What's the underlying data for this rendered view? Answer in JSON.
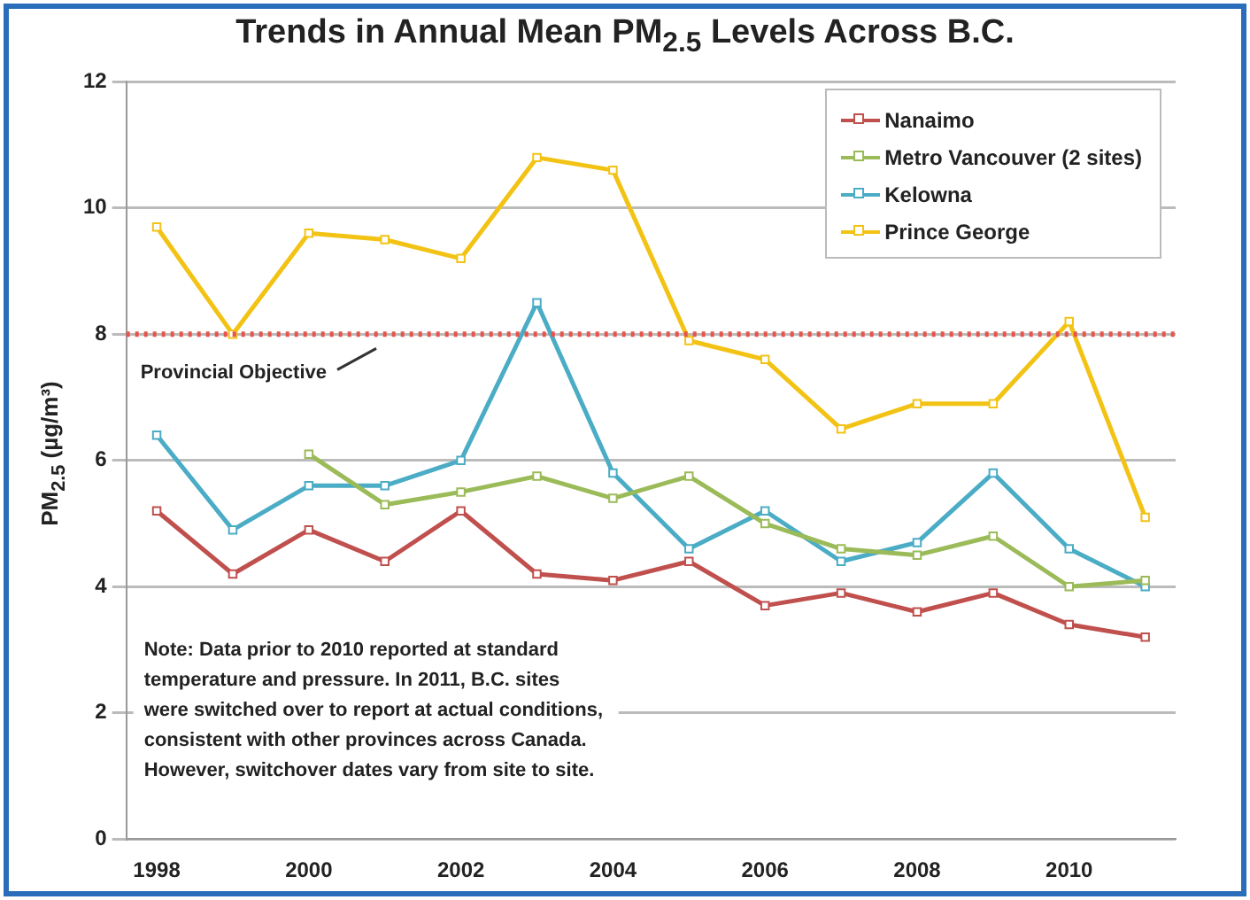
{
  "chart_data": {
    "type": "line",
    "title": "Trends in Annual Mean PM$_{2.5}$ Levels Across B.C.",
    "ylabel": "PM$_{2.5}$ (µg/m³)",
    "x": [
      1998,
      1999,
      2000,
      2001,
      2002,
      2003,
      2004,
      2005,
      2006,
      2007,
      2008,
      2009,
      2010,
      2011
    ],
    "series": [
      {
        "name": "Nanaimo",
        "color": "#c0504d",
        "values": [
          5.2,
          4.2,
          4.9,
          4.4,
          5.2,
          4.2,
          4.1,
          4.4,
          3.7,
          3.9,
          3.6,
          3.9,
          3.4,
          3.2
        ]
      },
      {
        "name": "Metro Vancouver (2 sites)",
        "color": "#9bbb59",
        "values": [
          null,
          null,
          6.1,
          5.3,
          5.5,
          5.75,
          5.4,
          5.75,
          5.0,
          4.6,
          4.5,
          4.8,
          4.0,
          4.1
        ]
      },
      {
        "name": "Kelowna",
        "color": "#4bacc6",
        "values": [
          6.4,
          4.9,
          5.6,
          5.6,
          6.0,
          8.5,
          5.8,
          4.6,
          5.2,
          4.4,
          4.7,
          5.8,
          4.6,
          4.0
        ]
      },
      {
        "name": "Prince George",
        "color": "#f2c314",
        "values": [
          9.7,
          8.0,
          9.6,
          9.5,
          9.2,
          10.8,
          10.6,
          7.9,
          7.6,
          6.5,
          6.9,
          6.9,
          8.2,
          5.1
        ]
      }
    ],
    "xlim": [
      1997.6,
      2011.4
    ],
    "xticks": [
      1998,
      2000,
      2002,
      2004,
      2006,
      2008,
      2010
    ],
    "ylim": [
      0,
      12
    ],
    "yticks": [
      0,
      2,
      4,
      6,
      8,
      10,
      12
    ],
    "ref_lines": [
      {
        "axis": "y",
        "value": 8,
        "label": "Provincial Objective",
        "color": "#e8534a",
        "line_style": "dotted"
      }
    ],
    "annotations": [
      "Note: Data prior to 2010 reported at standard temperature and pressure. In 2011, B.C. sites were switched over to report at actual conditions, consistent with other provinces across Canada. However, switchover dates vary from site to site."
    ],
    "grid": "y",
    "legend": "top right",
    "marker": "square",
    "line_style": "solid"
  }
}
